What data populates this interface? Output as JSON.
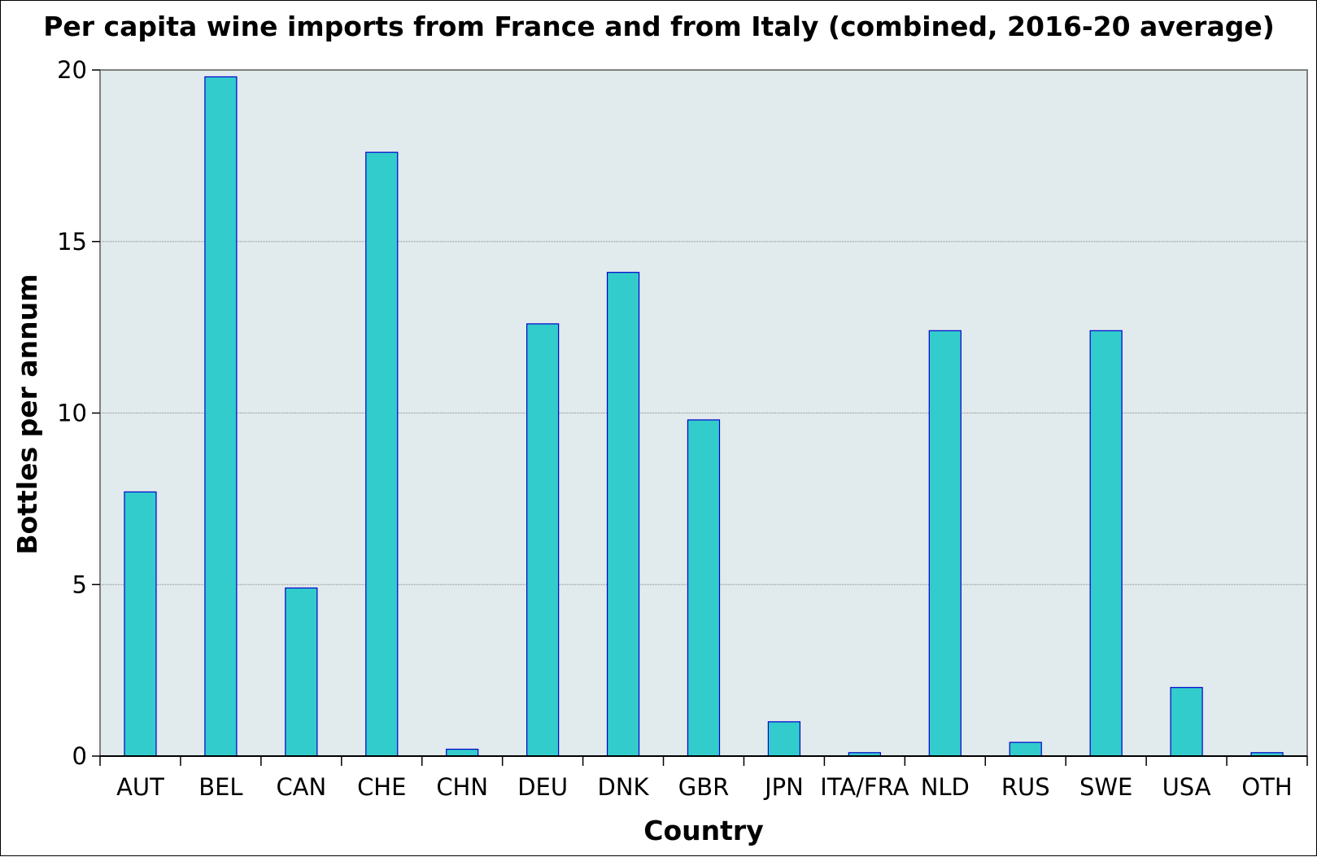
{
  "chart_data": {
    "type": "bar",
    "title": "Per capita wine imports from France and from Italy (combined, 2016-20 average)",
    "xlabel": "Country",
    "ylabel": "Bottles per annum",
    "categories": [
      "AUT",
      "BEL",
      "CAN",
      "CHE",
      "CHN",
      "DEU",
      "DNK",
      "GBR",
      "JPN",
      "ITA/FRA",
      "NLD",
      "RUS",
      "SWE",
      "USA",
      "OTH"
    ],
    "values": [
      7.7,
      19.8,
      4.9,
      17.6,
      0.2,
      12.6,
      14.1,
      9.8,
      1.0,
      0.1,
      12.4,
      0.4,
      12.4,
      2.0,
      0.1
    ],
    "ylim": [
      0,
      20
    ],
    "yticks": [
      "0",
      "5",
      "10",
      "15",
      "20"
    ],
    "grid": true,
    "legend": "none",
    "colors": {
      "bar_fill": "#33cccc",
      "bar_stroke": "#0000cc",
      "plot_background": "#e1eaec",
      "grid": "#888888",
      "axis": "#000000"
    }
  }
}
